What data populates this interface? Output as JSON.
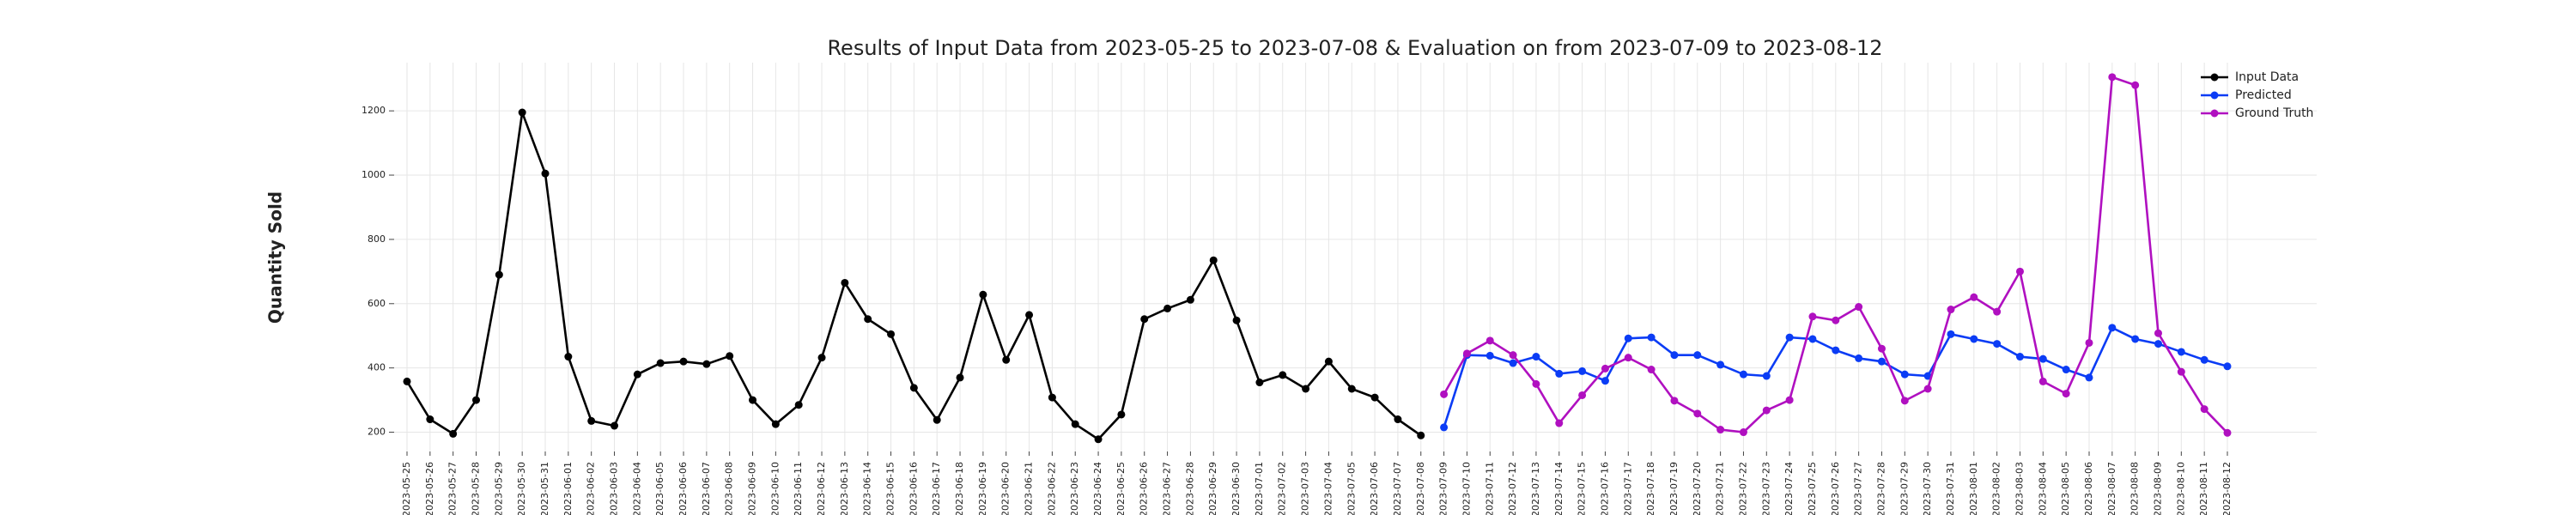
{
  "chart_data": {
    "type": "line",
    "title": "Results of Input Data from 2023-05-25 to 2023-07-08 & Evaluation on from 2023-07-09 to 2023-08-12",
    "y_label": "Quantity Sold",
    "categories": [
      "2023-05-25",
      "2023-05-26",
      "2023-05-27",
      "2023-05-28",
      "2023-05-29",
      "2023-05-30",
      "2023-05-31",
      "2023-06-01",
      "2023-06-02",
      "2023-06-03",
      "2023-06-04",
      "2023-06-05",
      "2023-06-06",
      "2023-06-07",
      "2023-06-08",
      "2023-06-09",
      "2023-06-10",
      "2023-06-11",
      "2023-06-12",
      "2023-06-13",
      "2023-06-14",
      "2023-06-15",
      "2023-06-16",
      "2023-06-17",
      "2023-06-18",
      "2023-06-19",
      "2023-06-20",
      "2023-06-21",
      "2023-06-22",
      "2023-06-23",
      "2023-06-24",
      "2023-06-25",
      "2023-06-26",
      "2023-06-27",
      "2023-06-28",
      "2023-06-29",
      "2023-06-30",
      "2023-07-01",
      "2023-07-02",
      "2023-07-03",
      "2023-07-04",
      "2023-07-05",
      "2023-07-06",
      "2023-07-07",
      "2023-07-08",
      "2023-07-09",
      "2023-07-10",
      "2023-07-11",
      "2023-07-12",
      "2023-07-13",
      "2023-07-14",
      "2023-07-15",
      "2023-07-16",
      "2023-07-17",
      "2023-07-18",
      "2023-07-19",
      "2023-07-20",
      "2023-07-21",
      "2023-07-22",
      "2023-07-23",
      "2023-07-24",
      "2023-07-25",
      "2023-07-26",
      "2023-07-27",
      "2023-07-28",
      "2023-07-29",
      "2023-07-30",
      "2023-07-31",
      "2023-08-01",
      "2023-08-02",
      "2023-08-03",
      "2023-08-04",
      "2023-08-05",
      "2023-08-06",
      "2023-08-07",
      "2023-08-08",
      "2023-08-09",
      "2023-08-10",
      "2023-08-11",
      "2023-08-12"
    ],
    "series": [
      {
        "name": "Input Data",
        "color": "#000000",
        "values": [
          358,
          240,
          195,
          300,
          690,
          1195,
          1005,
          435,
          235,
          220,
          380,
          415,
          420,
          412,
          437,
          300,
          225,
          285,
          432,
          665,
          552,
          505,
          338,
          238,
          370,
          628,
          425,
          565,
          308,
          225,
          178,
          255,
          552,
          585,
          612,
          735,
          548,
          355,
          378,
          335,
          420,
          335,
          308,
          240,
          190,
          null,
          null,
          null,
          null,
          null,
          null,
          null,
          null,
          null,
          null,
          null,
          null,
          null,
          null,
          null,
          null,
          null,
          null,
          null,
          null,
          null,
          null,
          null,
          null,
          null,
          null,
          null,
          null,
          null,
          null,
          null,
          null,
          null,
          null,
          null
        ]
      },
      {
        "name": "Predicted",
        "color": "#0b3cf5",
        "values": [
          null,
          null,
          null,
          null,
          null,
          null,
          null,
          null,
          null,
          null,
          null,
          null,
          null,
          null,
          null,
          null,
          null,
          null,
          null,
          null,
          null,
          null,
          null,
          null,
          null,
          null,
          null,
          null,
          null,
          null,
          null,
          null,
          null,
          null,
          null,
          null,
          null,
          null,
          null,
          null,
          null,
          null,
          null,
          null,
          null,
          215,
          440,
          438,
          415,
          435,
          382,
          390,
          360,
          492,
          495,
          440,
          440,
          410,
          380,
          375,
          495,
          490,
          455,
          430,
          420,
          380,
          375,
          505,
          490,
          475,
          435,
          428,
          395,
          370,
          525,
          490,
          475,
          450,
          425,
          405
        ]
      },
      {
        "name": "Ground Truth",
        "color": "#b010c0",
        "values": [
          null,
          null,
          null,
          null,
          null,
          null,
          null,
          null,
          null,
          null,
          null,
          null,
          null,
          null,
          null,
          null,
          null,
          null,
          null,
          null,
          null,
          null,
          null,
          null,
          null,
          null,
          null,
          null,
          null,
          null,
          null,
          null,
          null,
          null,
          null,
          null,
          null,
          null,
          null,
          null,
          null,
          null,
          null,
          null,
          null,
          318,
          445,
          485,
          440,
          350,
          228,
          315,
          398,
          432,
          395,
          298,
          258,
          208,
          200,
          268,
          300,
          560,
          548,
          590,
          460,
          298,
          335,
          582,
          620,
          575,
          700,
          358,
          320,
          478,
          1305,
          1280,
          508,
          388,
          272,
          198
        ]
      }
    ],
    "ylim": [
      140,
      1350
    ],
    "yticks": [
      200,
      400,
      600,
      800,
      1000,
      1200
    ],
    "grid": true,
    "legend": "upper right"
  }
}
